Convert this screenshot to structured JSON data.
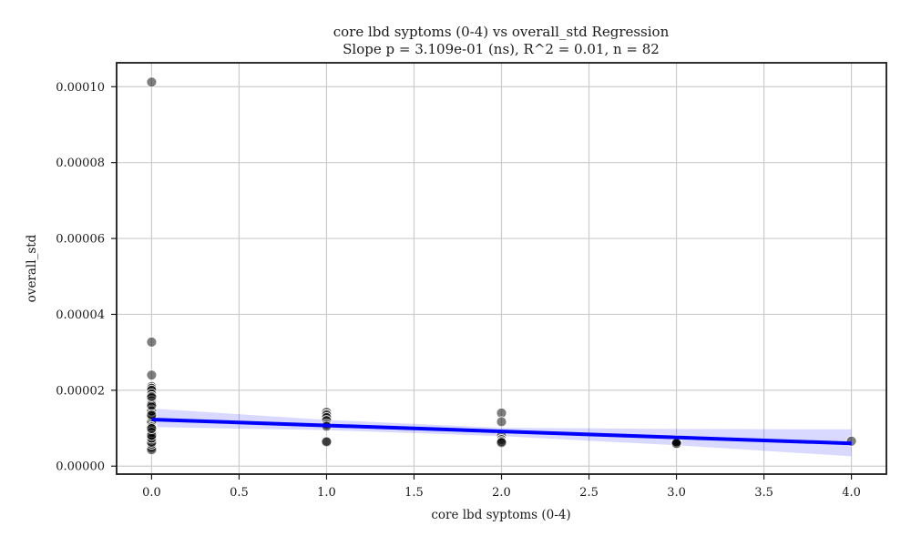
{
  "chart_data": {
    "type": "scatter",
    "title_line1": "core lbd syptoms (0-4) vs overall_std Regression",
    "title_line2": "Slope p = 3.109e-01 (ns), R^2 = 0.01, n = 82",
    "xlabel": "core lbd syptoms (0-4)",
    "ylabel": "overall_std",
    "xlim": [
      -0.2,
      4.2
    ],
    "ylim": [
      -2.1e-06,
      0.0001063
    ],
    "x_ticks": [
      0.0,
      0.5,
      1.0,
      1.5,
      2.0,
      2.5,
      3.0,
      3.5,
      4.0
    ],
    "x_tick_labels": [
      "0.0",
      "0.5",
      "1.0",
      "1.5",
      "2.0",
      "2.5",
      "3.0",
      "3.5",
      "4.0"
    ],
    "y_ticks": [
      0.0,
      2e-05,
      4e-05,
      6e-05,
      8e-05,
      0.0001
    ],
    "y_tick_labels": [
      "0.00000",
      "0.00002",
      "0.00004",
      "0.00006",
      "0.00008",
      "0.00010"
    ],
    "grid": true,
    "points": [
      [
        0,
        0.0001012
      ],
      [
        0,
        3.27e-05
      ],
      [
        0,
        2.4e-05
      ],
      [
        0,
        2.1e-05
      ],
      [
        0,
        2.05e-05
      ],
      [
        0,
        2e-05
      ],
      [
        0,
        1.9e-05
      ],
      [
        0,
        1.8e-05
      ],
      [
        0,
        1.72e-05
      ],
      [
        0,
        1.65e-05
      ],
      [
        0,
        1.55e-05
      ],
      [
        0,
        1.48e-05
      ],
      [
        0,
        1.4e-05
      ],
      [
        0,
        1.33e-05
      ],
      [
        0,
        1.25e-05
      ],
      [
        0,
        1.18e-05
      ],
      [
        0,
        1.12e-05
      ],
      [
        0,
        1.06e-05
      ],
      [
        0,
        1e-05
      ],
      [
        0,
        9.5e-06
      ],
      [
        0,
        9e-06
      ],
      [
        0,
        8.6e-06
      ],
      [
        0,
        8.2e-06
      ],
      [
        0,
        7.8e-06
      ],
      [
        0,
        7.5e-06
      ],
      [
        0,
        7.2e-06
      ],
      [
        0,
        6.8e-06
      ],
      [
        0,
        6.4e-06
      ],
      [
        0,
        6e-06
      ],
      [
        0,
        5.6e-06
      ],
      [
        0,
        5.2e-06
      ],
      [
        0,
        4.8e-06
      ],
      [
        0,
        4.3e-06
      ],
      [
        0,
        8.8e-06
      ],
      [
        0,
        8e-06
      ],
      [
        0,
        1.1e-05
      ],
      [
        0,
        1.02e-05
      ],
      [
        0,
        7e-06
      ],
      [
        0,
        1.2e-05
      ],
      [
        0,
        9.2e-06
      ],
      [
        0,
        8.4e-06
      ],
      [
        0,
        7.6e-06
      ],
      [
        0,
        6.6e-06
      ],
      [
        0,
        5.8e-06
      ],
      [
        0,
        9.7e-06
      ],
      [
        0,
        1.07e-05
      ],
      [
        0,
        1.15e-05
      ],
      [
        0,
        1.3e-05
      ],
      [
        0,
        1.45e-05
      ],
      [
        0,
        1.6e-05
      ],
      [
        0,
        7.9e-06
      ],
      [
        0,
        8.7e-06
      ],
      [
        0,
        9.3e-06
      ],
      [
        0,
        7.1e-06
      ],
      [
        0,
        6.3e-06
      ],
      [
        0,
        1.83e-05
      ],
      [
        0,
        1.35e-05
      ],
      [
        0,
        1.03e-05
      ],
      [
        0,
        8.9e-06
      ],
      [
        0,
        7.4e-06
      ],
      [
        0,
        8.1e-06
      ],
      [
        0,
        9.9e-06
      ],
      [
        1,
        1.42e-05
      ],
      [
        1,
        1.35e-05
      ],
      [
        1,
        1.28e-05
      ],
      [
        1,
        1.2e-05
      ],
      [
        1,
        1.1e-05
      ],
      [
        1,
        1.05e-05
      ],
      [
        1,
        6.6e-06
      ],
      [
        1,
        6.4e-06
      ],
      [
        2,
        1.4e-05
      ],
      [
        2,
        1.17e-05
      ],
      [
        2,
        8e-06
      ],
      [
        2,
        7e-06
      ],
      [
        2,
        6.5e-06
      ],
      [
        2,
        6.2e-06
      ],
      [
        3,
        6.8e-06
      ],
      [
        3,
        6.2e-06
      ],
      [
        3,
        5.8e-06
      ],
      [
        3,
        6.4e-06
      ],
      [
        3,
        6e-06
      ],
      [
        4,
        6.6e-06
      ]
    ],
    "regression": {
      "color": "#0000ff",
      "line": [
        [
          0,
          1.23e-05
        ],
        [
          4,
          6e-06
        ]
      ],
      "ci_upper": [
        [
          0,
          1.52e-05
        ],
        [
          1,
          1.22e-05
        ],
        [
          2,
          1.01e-05
        ],
        [
          3,
          9.8e-06
        ],
        [
          4,
          9.7e-06
        ]
      ],
      "ci_lower": [
        [
          0,
          1.03e-05
        ],
        [
          1,
          9.5e-06
        ],
        [
          2,
          7.9e-06
        ],
        [
          3,
          5.5e-06
        ],
        [
          4,
          2.6e-06
        ]
      ]
    },
    "point_color": "#000000",
    "band_color": "#0000ff"
  }
}
